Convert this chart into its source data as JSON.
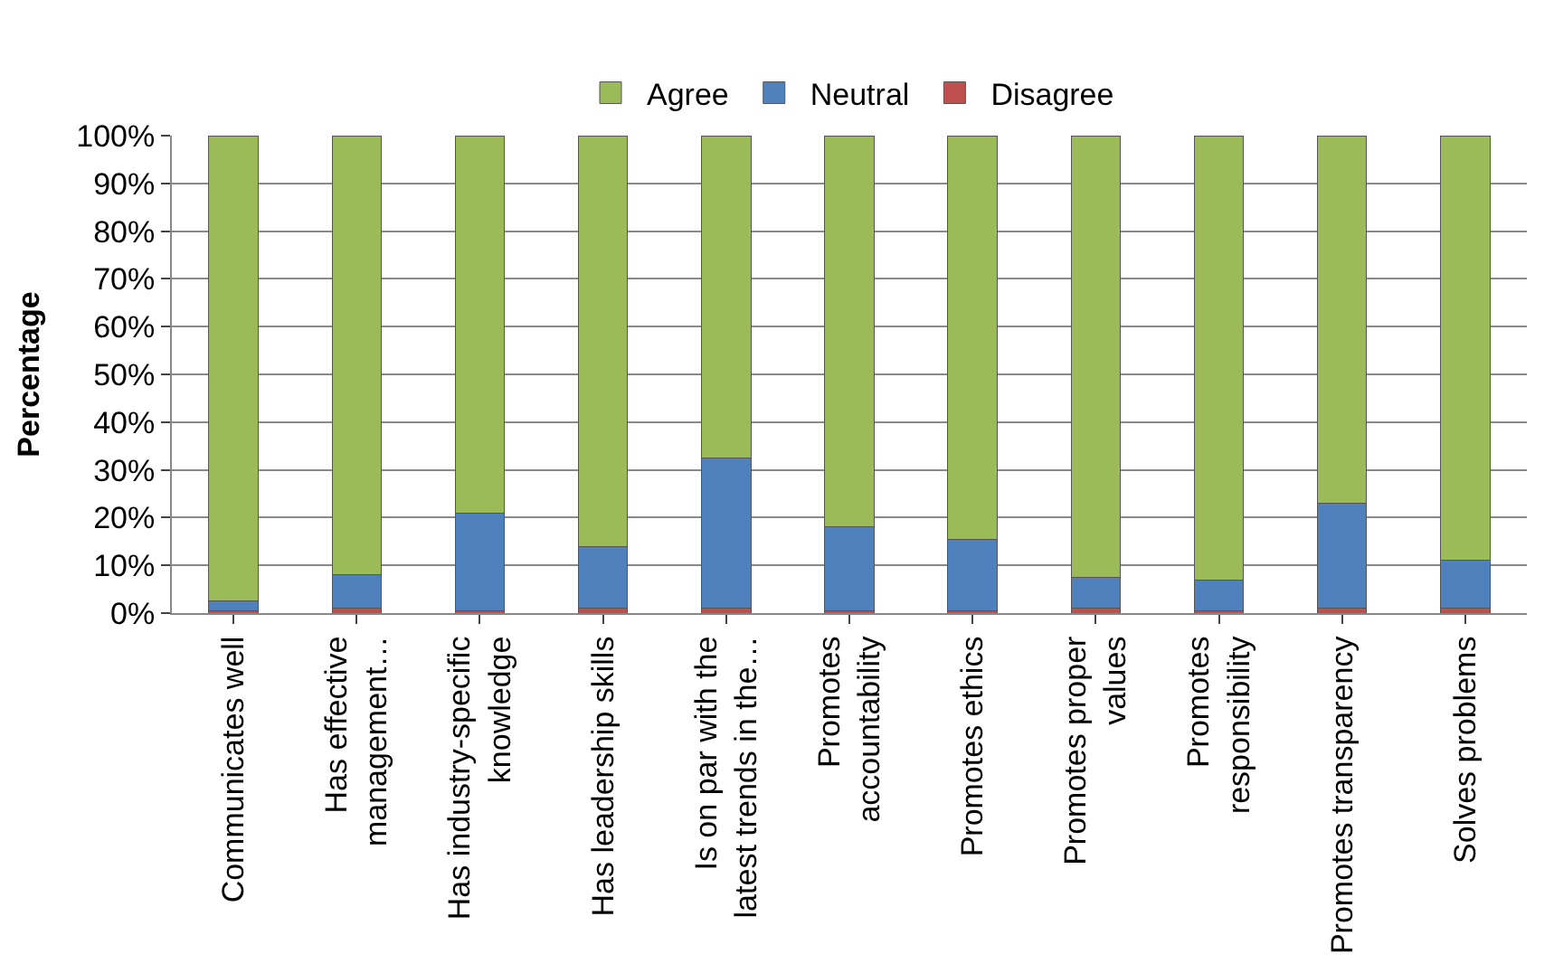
{
  "chart_data": {
    "type": "bar",
    "stacked": true,
    "ylabel": "Percentage",
    "categories": [
      "Communicates well",
      "Has effective management…",
      "Has industry-specific knowledge",
      "Has leadership skills",
      "Is on par with the latest trends in the…",
      "Promotes accountability",
      "Promotes ethics",
      "Promotes proper values",
      "Promotes responsibility",
      "Promotes transparency",
      "Solves problems"
    ],
    "series": [
      {
        "name": "Disagree",
        "color": "#c0504d",
        "values": [
          0.5,
          1,
          0.5,
          1,
          1,
          0.5,
          0.5,
          1,
          0.5,
          1,
          1
        ]
      },
      {
        "name": "Neutral",
        "color": "#4f81bd",
        "values": [
          2,
          7,
          20.5,
          13,
          31.5,
          17.5,
          15,
          6.5,
          6.5,
          22,
          10
        ]
      },
      {
        "name": "Agree",
        "color": "#9bbb59",
        "values": [
          97.5,
          92,
          79,
          86,
          67.5,
          82,
          84.5,
          92.5,
          93,
          77,
          89
        ]
      }
    ],
    "ylim": [
      0,
      100
    ],
    "yticks": [
      {
        "value": 0,
        "label": "0%"
      },
      {
        "value": 10,
        "label": "10%"
      },
      {
        "value": 20,
        "label": "20%"
      },
      {
        "value": 30,
        "label": "30%"
      },
      {
        "value": 40,
        "label": "40%"
      },
      {
        "value": 50,
        "label": "50%"
      },
      {
        "value": 60,
        "label": "60%"
      },
      {
        "value": 70,
        "label": "70%"
      },
      {
        "value": 80,
        "label": "80%"
      },
      {
        "value": 90,
        "label": "90%"
      },
      {
        "value": 100,
        "label": "100%"
      }
    ],
    "grid": "y",
    "legend": "top"
  }
}
